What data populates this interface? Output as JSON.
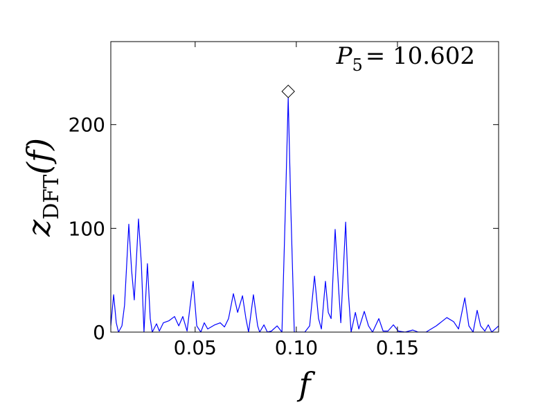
{
  "chart_data": {
    "type": "line",
    "x_label": "f",
    "y_label": {
      "symbol": "z",
      "subscript": "DFT",
      "argument": "(f)"
    },
    "annotation": {
      "symbol": "P",
      "subscript": "5",
      "text": "= 10.602"
    },
    "xlim": [
      0.0083,
      0.2
    ],
    "ylim": [
      0,
      280
    ],
    "xticks": [
      0.05,
      {
        "value": 0.1,
        "label": "0.10"
      },
      0.15
    ],
    "yticks": [
      0,
      100,
      200
    ],
    "grid": false,
    "x": [
      0.0083,
      0.0097,
      0.011,
      0.0121,
      0.0138,
      0.0151,
      0.0172,
      0.0186,
      0.0199,
      0.022,
      0.0234,
      0.0247,
      0.0264,
      0.0278,
      0.0288,
      0.0309,
      0.0323,
      0.0343,
      0.0371,
      0.0398,
      0.0419,
      0.0439,
      0.046,
      0.049,
      0.0508,
      0.0528,
      0.0545,
      0.0562,
      0.0597,
      0.0624,
      0.0645,
      0.0665,
      0.0689,
      0.071,
      0.0734,
      0.0751,
      0.0764,
      0.0788,
      0.0809,
      0.0819,
      0.084,
      0.0857,
      0.0877,
      0.0905,
      0.0929,
      0.0946,
      0.096,
      0.0973,
      0.099,
      0.1011,
      0.1042,
      0.1066,
      0.109,
      0.111,
      0.1124,
      0.1144,
      0.1158,
      0.1172,
      0.1192,
      0.121,
      0.122,
      0.1244,
      0.1257,
      0.1271,
      0.1292,
      0.1309,
      0.1336,
      0.1357,
      0.1377,
      0.1408,
      0.1429,
      0.1453,
      0.148,
      0.1504,
      0.1538,
      0.1576,
      0.1603,
      0.1641,
      0.1692,
      0.1744,
      0.1778,
      0.1802,
      0.1833,
      0.1853,
      0.1874,
      0.1894,
      0.1911,
      0.1932,
      0.1949,
      0.1966,
      0.1983,
      0.2
    ],
    "series": [
      {
        "color": "#0000ff",
        "values": [
          6,
          36,
          9,
          0,
          6,
          26,
          104,
          59,
          31,
          109,
          66,
          0,
          66,
          13,
          0,
          8,
          1,
          9,
          11,
          15,
          6,
          15,
          1,
          49,
          6,
          0,
          9,
          3,
          7,
          9,
          5,
          13,
          37,
          19,
          35,
          13,
          0,
          36,
          6,
          0,
          7,
          0,
          1,
          6,
          0,
          119,
          226,
          119,
          0,
          0,
          0,
          6,
          54,
          13,
          3,
          49,
          19,
          13,
          99,
          39,
          9,
          106,
          39,
          0,
          19,
          3,
          20,
          6,
          0,
          13,
          1,
          1,
          7,
          1,
          0,
          2,
          0,
          0,
          6,
          14,
          10,
          3,
          33,
          6,
          0,
          21,
          6,
          1,
          7,
          0,
          3,
          6
        ]
      }
    ],
    "peak_marker": {
      "x": 0.096,
      "y": 232,
      "shape": "diamond",
      "color": "#ffffff"
    }
  }
}
